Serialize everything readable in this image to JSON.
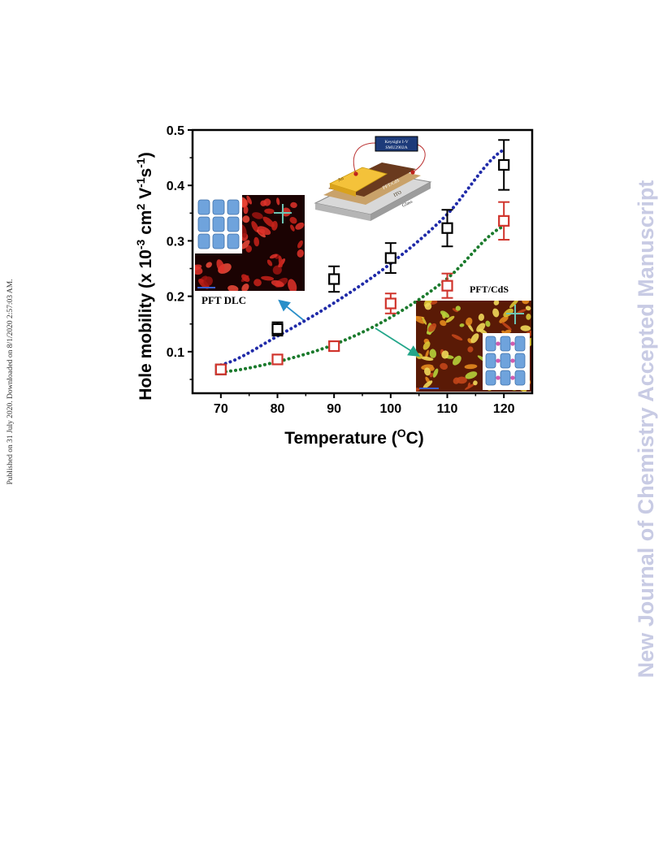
{
  "side_note": "Published on 31 July 2020. Downloaded on 8/1/2020 2:57:03 AM.",
  "watermark": "New Journal of Chemistry Accepted Manuscript",
  "chart_data": {
    "type": "scatter",
    "title": "",
    "xlabel": "Temperature (OC)",
    "ylabel": "Hole mobility (x 10-3 cm2 V-1s-1)",
    "xlim": [
      65,
      125
    ],
    "ylim": [
      0.025,
      0.5
    ],
    "x_ticks": [
      70,
      80,
      90,
      100,
      110,
      120
    ],
    "y_ticks": [
      0.1,
      0.2,
      0.3,
      0.4,
      0.5
    ],
    "grid": false,
    "series": [
      {
        "marker": "open-square",
        "color": "#000000",
        "x": [
          70,
          80,
          90,
          100,
          110,
          120
        ],
        "y": [
          0.068,
          0.141,
          0.231,
          0.269,
          0.323,
          0.437
        ],
        "err": [
          0.006,
          0.012,
          0.023,
          0.027,
          0.033,
          0.045
        ]
      },
      {
        "marker": "open-square",
        "color": "#d0342c",
        "x": [
          70,
          80,
          90,
          100,
          110,
          120
        ],
        "y": [
          0.068,
          0.086,
          0.11,
          0.187,
          0.219,
          0.336
        ],
        "err": [
          0.005,
          0.005,
          0.008,
          0.018,
          0.022,
          0.034
        ]
      }
    ],
    "fits": [
      {
        "color": "#1f2aa8",
        "style": "dotted",
        "x": [
          70,
          80,
          90,
          100,
          110,
          120
        ],
        "y": [
          0.076,
          0.128,
          0.188,
          0.259,
          0.348,
          0.465
        ]
      },
      {
        "color": "#1a7a2c",
        "style": "dotted",
        "x": [
          70,
          80,
          90,
          100,
          110,
          120
        ],
        "y": [
          0.063,
          0.082,
          0.113,
          0.162,
          0.232,
          0.327
        ]
      }
    ],
    "annotations": {
      "device_labels": [
        "Keysight I-V",
        "SMU2902A",
        "Au",
        "PFT/CdS",
        "ITO",
        "Glass"
      ],
      "inset_left_label": "PFT DLC",
      "inset_right_label": "PFT/CdS"
    },
    "colors": {
      "arrow_left": "#2a8fc9",
      "arrow_right": "#23a68a",
      "crosshair": "#6ec5b4"
    }
  }
}
